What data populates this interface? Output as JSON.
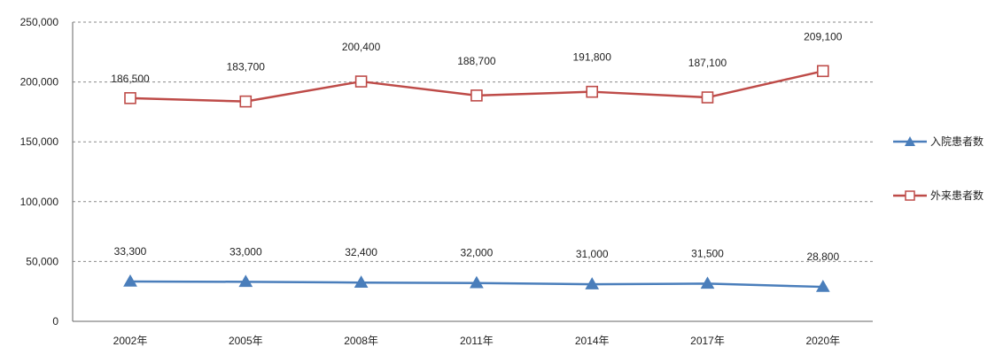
{
  "chart_data": {
    "type": "line",
    "title": "",
    "xlabel": "",
    "ylabel": "",
    "categories": [
      "2002年",
      "2005年",
      "2008年",
      "2011年",
      "2014年",
      "2017年",
      "2020年"
    ],
    "ylim": [
      0,
      250000
    ],
    "yticks": [
      0,
      50000,
      100000,
      150000,
      200000,
      250000
    ],
    "ytick_labels": [
      "0",
      "50,000",
      "100,000",
      "150,000",
      "200,000",
      "250,000"
    ],
    "grid": true,
    "legend_position": "right",
    "series": [
      {
        "name": "入院患者数",
        "marker": "triangle",
        "color": "#4a7ebb",
        "values": [
          33300,
          33000,
          32400,
          32000,
          31000,
          31500,
          28800
        ],
        "labels": [
          "33,300",
          "33,000",
          "32,400",
          "32,000",
          "31,000",
          "31,500",
          "28,800"
        ]
      },
      {
        "name": "外来患者数",
        "marker": "square-open",
        "color": "#be4b48",
        "values": [
          186500,
          183700,
          200400,
          188700,
          191800,
          187100,
          209100
        ],
        "labels": [
          "186,500",
          "183,700",
          "200,400",
          "188,700",
          "191,800",
          "187,100",
          "209,100"
        ]
      }
    ]
  }
}
